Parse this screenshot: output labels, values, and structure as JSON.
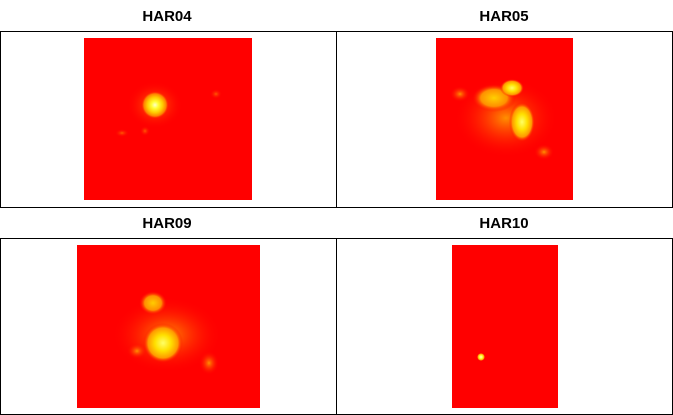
{
  "chart_data": [
    {
      "type": "heatmap",
      "title": "HAR04",
      "colormap": [
        "#ff0000",
        "#ff8000",
        "#ffff00",
        "#ffffff"
      ],
      "hotspots": [
        {
          "level": 1.0,
          "spread": "small"
        },
        {
          "level": 0.25,
          "spread": "tiny"
        }
      ]
    },
    {
      "type": "heatmap",
      "title": "HAR05",
      "colormap": [
        "#ff0000",
        "#ff8000",
        "#ffff00",
        "#ffffff"
      ],
      "hotspots": [
        {
          "level": 0.9,
          "spread": "elongated"
        },
        {
          "level": 0.6,
          "spread": "medium"
        }
      ]
    },
    {
      "type": "heatmap",
      "title": "HAR09",
      "colormap": [
        "#ff0000",
        "#ff8000",
        "#ffff00",
        "#ffffff"
      ],
      "hotspots": [
        {
          "level": 0.95,
          "spread": "medium"
        },
        {
          "level": 0.55,
          "spread": "small"
        }
      ]
    },
    {
      "type": "heatmap",
      "title": "HAR10",
      "colormap": [
        "#ff0000",
        "#ff8000",
        "#ffff00",
        "#ffffff"
      ],
      "hotspots": [
        {
          "level": 1.0,
          "spread": "point"
        }
      ]
    }
  ]
}
